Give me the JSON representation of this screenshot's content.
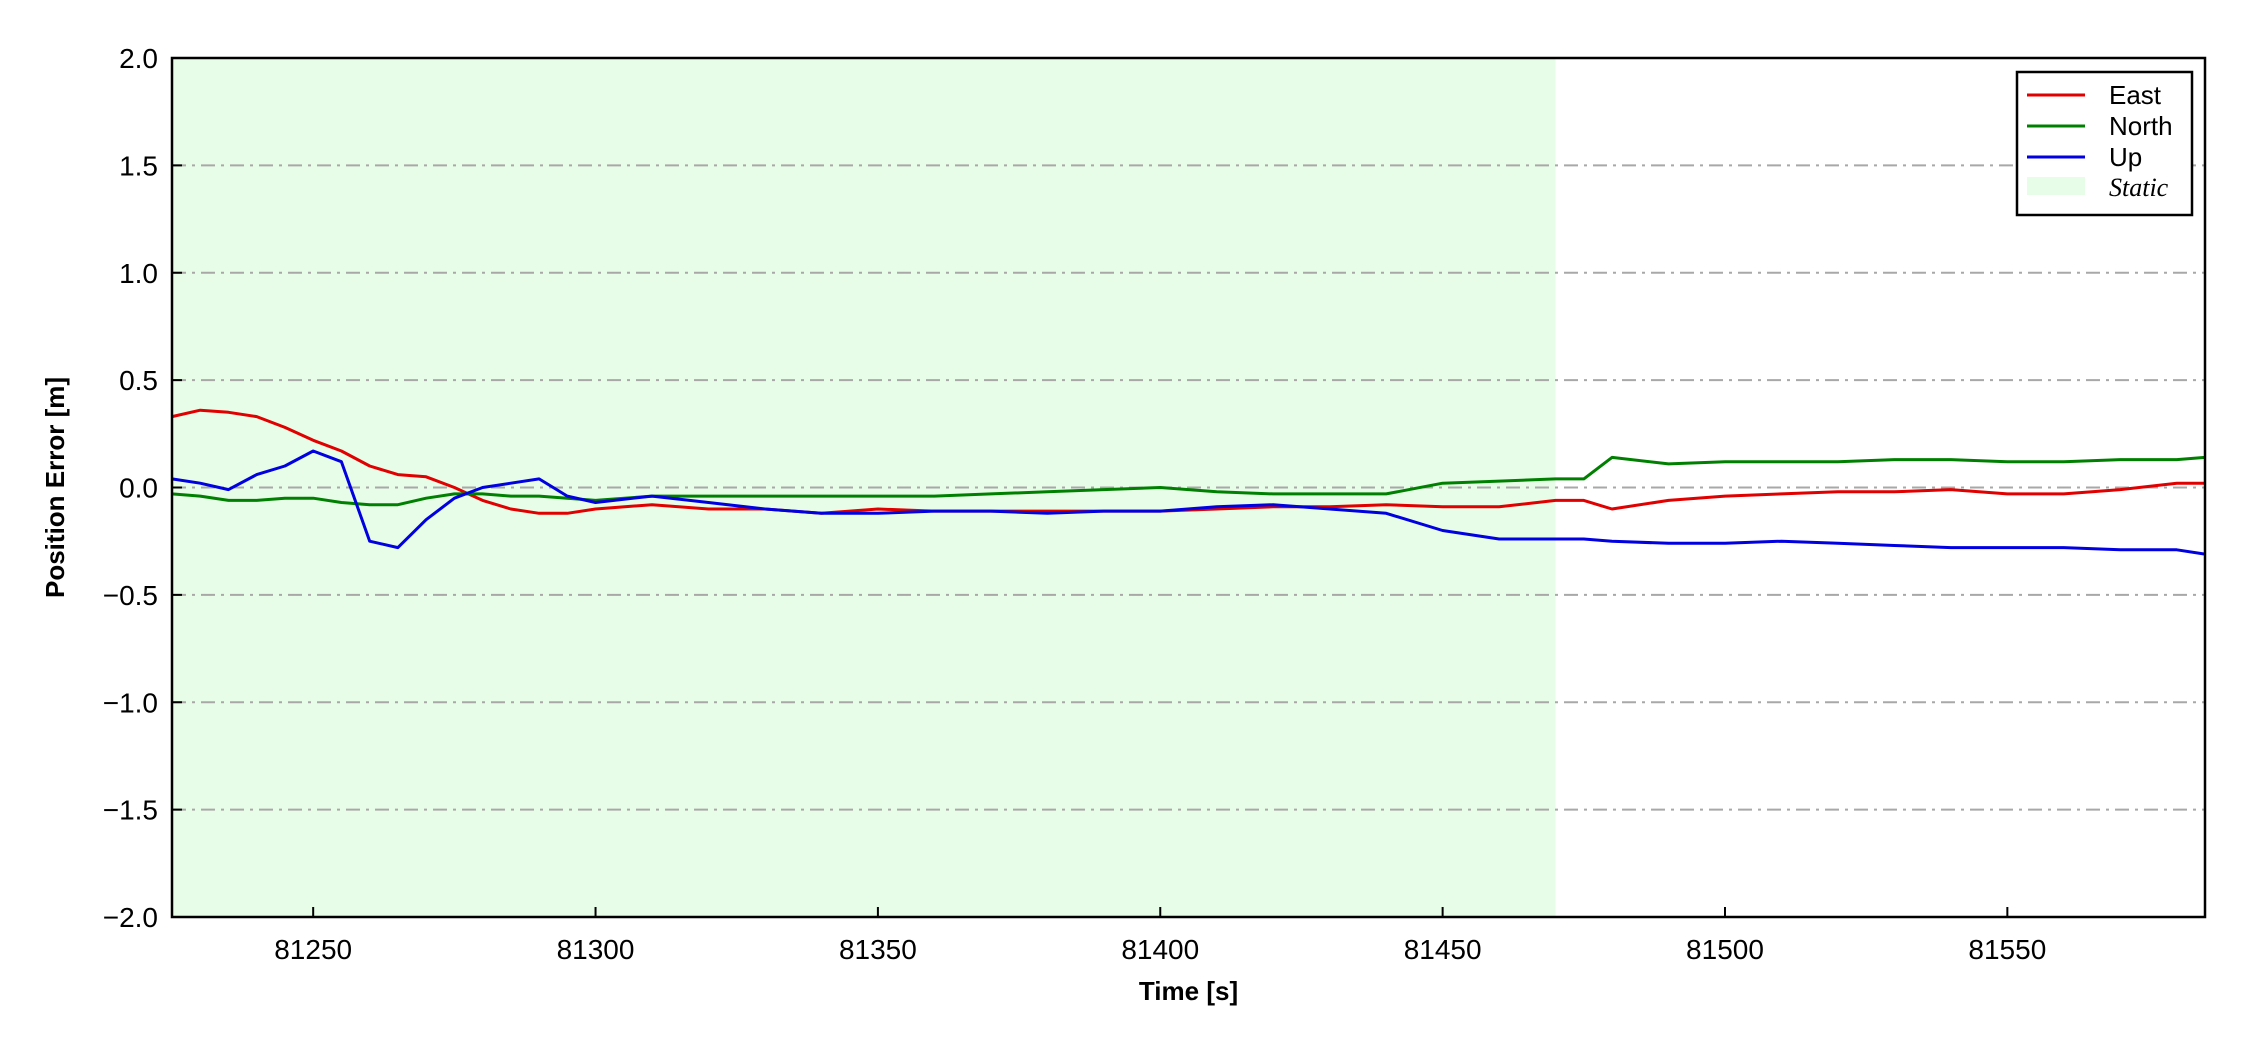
{
  "chart_data": {
    "type": "line",
    "title": "",
    "xlabel": "Time [s]",
    "ylabel": "Position Error [m]",
    "xlim": [
      81225,
      81585
    ],
    "ylim": [
      -2.0,
      2.0
    ],
    "xticks": [
      81250,
      81300,
      81350,
      81400,
      81450,
      81500,
      81550
    ],
    "yticks": [
      -2.0,
      -1.5,
      -1.0,
      -0.5,
      0.0,
      0.5,
      1.0,
      1.5,
      2.0
    ],
    "ytick_labels": [
      "−2.0",
      "−1.5",
      "−1.0",
      "−0.5",
      "0.0",
      "0.5",
      "1.0",
      "1.5",
      "2.0"
    ],
    "grid": "horizontal dash-dot",
    "legend_position": "top-right",
    "shaded_regions": [
      {
        "name": "Static",
        "x_start": 81225,
        "x_end": 81470,
        "color": "#e8fde8"
      }
    ],
    "x": [
      81225,
      81230,
      81235,
      81240,
      81245,
      81250,
      81255,
      81260,
      81265,
      81270,
      81275,
      81280,
      81285,
      81290,
      81295,
      81300,
      81310,
      81320,
      81330,
      81340,
      81350,
      81360,
      81370,
      81380,
      81390,
      81400,
      81410,
      81420,
      81430,
      81440,
      81450,
      81460,
      81470,
      81475,
      81480,
      81490,
      81500,
      81510,
      81520,
      81530,
      81540,
      81550,
      81560,
      81570,
      81580,
      81585
    ],
    "series": [
      {
        "name": "East",
        "color": "#e00000",
        "values": [
          0.33,
          0.36,
          0.35,
          0.33,
          0.28,
          0.22,
          0.17,
          0.1,
          0.06,
          0.05,
          0.0,
          -0.06,
          -0.1,
          -0.12,
          -0.12,
          -0.1,
          -0.08,
          -0.1,
          -0.1,
          -0.12,
          -0.1,
          -0.11,
          -0.11,
          -0.11,
          -0.11,
          -0.11,
          -0.1,
          -0.09,
          -0.09,
          -0.08,
          -0.09,
          -0.09,
          -0.06,
          -0.06,
          -0.1,
          -0.06,
          -0.04,
          -0.03,
          -0.02,
          -0.02,
          -0.01,
          -0.03,
          -0.03,
          -0.01,
          0.02,
          0.02
        ]
      },
      {
        "name": "North",
        "color": "#008000",
        "values": [
          -0.03,
          -0.04,
          -0.06,
          -0.06,
          -0.05,
          -0.05,
          -0.07,
          -0.08,
          -0.08,
          -0.05,
          -0.03,
          -0.03,
          -0.04,
          -0.04,
          -0.05,
          -0.06,
          -0.04,
          -0.04,
          -0.04,
          -0.04,
          -0.04,
          -0.04,
          -0.03,
          -0.02,
          -0.01,
          0.0,
          -0.02,
          -0.03,
          -0.03,
          -0.03,
          0.02,
          0.03,
          0.04,
          0.04,
          0.14,
          0.11,
          0.12,
          0.12,
          0.12,
          0.13,
          0.13,
          0.12,
          0.12,
          0.13,
          0.13,
          0.14
        ]
      },
      {
        "name": "Up",
        "color": "#0000e0",
        "values": [
          0.04,
          0.02,
          -0.01,
          0.06,
          0.1,
          0.17,
          0.12,
          -0.25,
          -0.28,
          -0.15,
          -0.05,
          0.0,
          0.02,
          0.04,
          -0.04,
          -0.07,
          -0.04,
          -0.07,
          -0.1,
          -0.12,
          -0.12,
          -0.11,
          -0.11,
          -0.12,
          -0.11,
          -0.11,
          -0.09,
          -0.08,
          -0.1,
          -0.12,
          -0.2,
          -0.24,
          -0.24,
          -0.24,
          -0.25,
          -0.26,
          -0.26,
          -0.25,
          -0.26,
          -0.27,
          -0.28,
          -0.28,
          -0.28,
          -0.29,
          -0.29,
          -0.31
        ]
      }
    ]
  },
  "legend": {
    "items": [
      {
        "label": "East",
        "color": "#e00000"
      },
      {
        "label": "North",
        "color": "#008000"
      },
      {
        "label": "Up",
        "color": "#0000e0"
      },
      {
        "label": "Static",
        "color": "#e8fde8"
      }
    ]
  }
}
